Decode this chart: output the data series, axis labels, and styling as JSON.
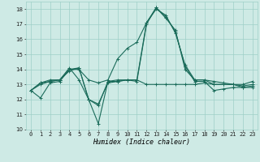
{
  "xlabel": "Humidex (Indice chaleur)",
  "xlim": [
    -0.5,
    23.5
  ],
  "ylim": [
    10,
    18.5
  ],
  "yticks": [
    10,
    11,
    12,
    13,
    14,
    15,
    16,
    17,
    18
  ],
  "xticks": [
    0,
    1,
    2,
    3,
    4,
    5,
    6,
    7,
    8,
    9,
    10,
    11,
    12,
    13,
    14,
    15,
    16,
    17,
    18,
    19,
    20,
    21,
    22,
    23
  ],
  "background_color": "#ceeae5",
  "grid_color": "#9ecfc7",
  "line_color": "#1a6b5a",
  "series": [
    [
      12.6,
      12.1,
      13.1,
      13.2,
      14.0,
      14.1,
      12.0,
      10.4,
      13.2,
      13.2,
      13.3,
      13.2,
      17.0,
      18.1,
      17.4,
      16.6,
      14.0,
      13.3,
      13.3,
      13.0,
      13.0,
      13.0,
      12.9,
      13.0
    ],
    [
      12.6,
      13.1,
      13.3,
      13.3,
      14.1,
      13.3,
      12.0,
      11.7,
      13.1,
      13.2,
      13.3,
      13.3,
      17.1,
      18.1,
      17.5,
      16.5,
      14.2,
      13.2,
      13.2,
      12.6,
      12.7,
      12.8,
      12.8,
      12.9
    ],
    [
      12.6,
      13.0,
      13.2,
      13.3,
      14.0,
      14.0,
      13.3,
      13.1,
      13.3,
      14.7,
      15.4,
      15.8,
      17.1,
      18.0,
      17.6,
      16.4,
      14.3,
      13.3,
      13.3,
      13.2,
      13.1,
      13.0,
      12.8,
      12.8
    ],
    [
      12.6,
      13.1,
      13.2,
      13.3,
      13.9,
      14.1,
      12.0,
      11.6,
      13.2,
      13.3,
      13.3,
      13.3,
      13.0,
      13.0,
      13.0,
      13.0,
      13.0,
      13.0,
      13.1,
      13.0,
      13.0,
      13.0,
      13.0,
      13.2
    ]
  ],
  "marker": "+",
  "markersize": 3,
  "linewidth": 0.8,
  "tick_fontsize": 5,
  "xlabel_fontsize": 6
}
